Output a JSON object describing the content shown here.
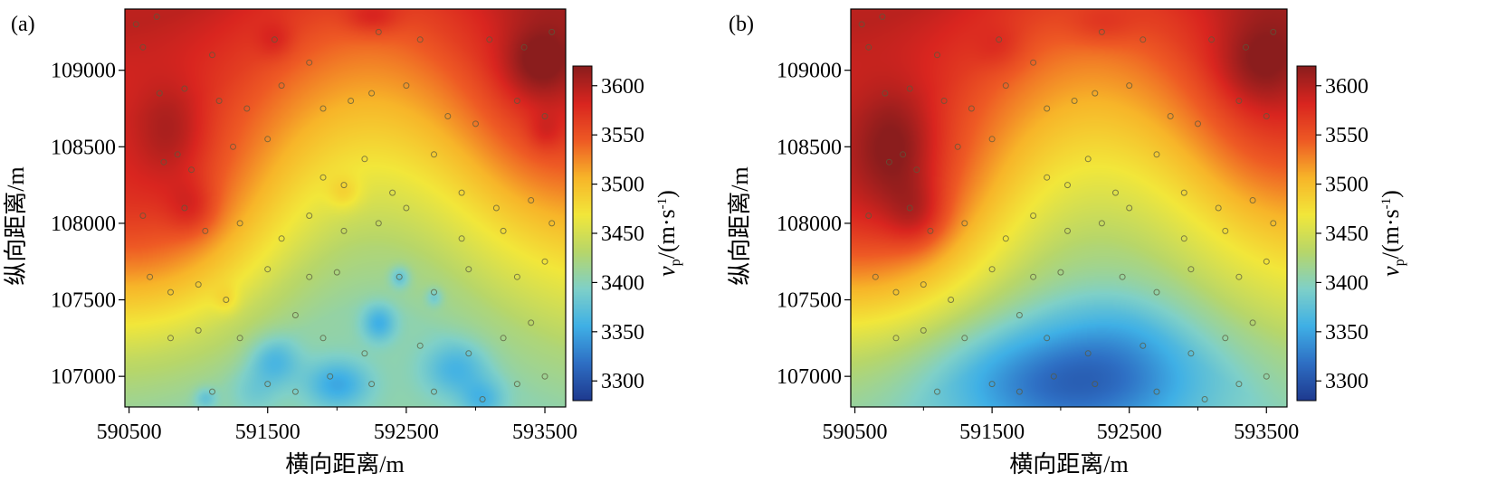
{
  "figure": {
    "colormap": {
      "name": "jet-like",
      "stops": [
        "#1e3a8f",
        "#2e6fc4",
        "#3fb0e6",
        "#7fd0c8",
        "#b7d66a",
        "#f2e73a",
        "#f7b529",
        "#ee5a24",
        "#d9251f",
        "#8b1d1d"
      ]
    }
  },
  "chart_data": [
    {
      "type": "heatmap",
      "panel_label": "(a)",
      "xlabel": "横向距离/m",
      "ylabel": "纵向距离/m",
      "xlim": [
        590470,
        593650
      ],
      "ylim": [
        106800,
        109400
      ],
      "xticks": [
        590500,
        591500,
        592500,
        593500
      ],
      "yticks": [
        107000,
        107500,
        108000,
        108500,
        109000
      ],
      "colorbar": {
        "label": "vp/(m·s-1)",
        "range": [
          3280,
          3620
        ],
        "ticks": [
          3300,
          3350,
          3400,
          3450,
          3500,
          3550,
          3600
        ]
      },
      "field": {
        "base": [
          [
            0.55,
            109400,
            3590
          ],
          [
            0.0,
            108650,
            3550
          ],
          [
            0.3,
            108050,
            3510
          ],
          [
            0.55,
            107600,
            3460
          ],
          [
            1.0,
            107450,
            3420
          ]
        ],
        "west_ridge": {
          "x": 590600,
          "y": 108000,
          "sx": 900,
          "sy": 700,
          "amp": 60
        },
        "bumps": [
          [
            591550,
            107100,
            180,
            160,
            -45
          ],
          [
            592000,
            106950,
            230,
            160,
            -55
          ],
          [
            591400,
            106900,
            170,
            140,
            -20
          ],
          [
            592300,
            107350,
            120,
            120,
            -50
          ],
          [
            592850,
            107050,
            230,
            180,
            -45
          ],
          [
            593050,
            106850,
            160,
            130,
            -40
          ],
          [
            591050,
            106860,
            80,
            70,
            -30
          ],
          [
            592450,
            107650,
            70,
            70,
            -40
          ],
          [
            592700,
            107520,
            60,
            60,
            -30
          ],
          [
            590800,
            108600,
            260,
            320,
            30
          ],
          [
            590950,
            108100,
            180,
            180,
            30
          ],
          [
            591200,
            107500,
            90,
            90,
            20
          ],
          [
            592250,
            109350,
            200,
            110,
            30
          ],
          [
            593450,
            109050,
            250,
            220,
            35
          ],
          [
            593500,
            108600,
            120,
            120,
            20
          ],
          [
            591550,
            109200,
            130,
            120,
            20
          ],
          [
            592050,
            108200,
            120,
            110,
            25
          ]
        ]
      },
      "samples": [
        [
          590550,
          109300
        ],
        [
          590600,
          109150
        ],
        [
          590700,
          109350
        ],
        [
          591100,
          109100
        ],
        [
          591550,
          109200
        ],
        [
          591800,
          109050
        ],
        [
          592300,
          109250
        ],
        [
          592600,
          109200
        ],
        [
          593100,
          109200
        ],
        [
          593350,
          109150
        ],
        [
          593550,
          109250
        ],
        [
          590720,
          108850
        ],
        [
          590900,
          108880
        ],
        [
          591150,
          108800
        ],
        [
          591350,
          108750
        ],
        [
          591600,
          108900
        ],
        [
          591900,
          108750
        ],
        [
          592100,
          108800
        ],
        [
          592250,
          108850
        ],
        [
          592500,
          108900
        ],
        [
          592800,
          108700
        ],
        [
          593000,
          108650
        ],
        [
          593300,
          108800
        ],
        [
          593500,
          108700
        ],
        [
          590750,
          108400
        ],
        [
          590850,
          108450
        ],
        [
          590950,
          108350
        ],
        [
          591250,
          108500
        ],
        [
          591500,
          108550
        ],
        [
          591900,
          108300
        ],
        [
          592050,
          108250
        ],
        [
          592200,
          108420
        ],
        [
          592400,
          108200
        ],
        [
          592700,
          108450
        ],
        [
          592900,
          108200
        ],
        [
          593150,
          108100
        ],
        [
          593400,
          108150
        ],
        [
          590600,
          108050
        ],
        [
          590900,
          108100
        ],
        [
          591050,
          107950
        ],
        [
          591300,
          108000
        ],
        [
          591600,
          107900
        ],
        [
          591800,
          108050
        ],
        [
          592050,
          107950
        ],
        [
          592300,
          108000
        ],
        [
          592500,
          108100
        ],
        [
          592900,
          107900
        ],
        [
          593200,
          107950
        ],
        [
          593550,
          108000
        ],
        [
          590650,
          107650
        ],
        [
          590800,
          107550
        ],
        [
          591000,
          107600
        ],
        [
          591200,
          107500
        ],
        [
          591500,
          107700
        ],
        [
          591800,
          107650
        ],
        [
          592000,
          107680
        ],
        [
          592450,
          107650
        ],
        [
          592700,
          107550
        ],
        [
          592950,
          107700
        ],
        [
          593300,
          107650
        ],
        [
          593500,
          107750
        ],
        [
          590800,
          107250
        ],
        [
          591000,
          107300
        ],
        [
          591300,
          107250
        ],
        [
          591700,
          107400
        ],
        [
          591900,
          107250
        ],
        [
          592200,
          107150
        ],
        [
          592600,
          107200
        ],
        [
          592950,
          107150
        ],
        [
          593200,
          107250
        ],
        [
          593400,
          107350
        ],
        [
          591100,
          106900
        ],
        [
          591500,
          106950
        ],
        [
          591700,
          106900
        ],
        [
          591950,
          107000
        ],
        [
          592250,
          106950
        ],
        [
          592700,
          106900
        ],
        [
          593050,
          106850
        ],
        [
          593300,
          106950
        ],
        [
          593500,
          107000
        ]
      ]
    },
    {
      "type": "heatmap",
      "panel_label": "(b)",
      "xlabel": "横向距离/m",
      "ylabel": "纵向距离/m",
      "xlim": [
        590470,
        593650
      ],
      "ylim": [
        106800,
        109400
      ],
      "xticks": [
        590500,
        591500,
        592500,
        593500
      ],
      "yticks": [
        107000,
        107500,
        108000,
        108500,
        109000
      ],
      "colorbar": {
        "label": "vp/(m·s-1)",
        "range": [
          3280,
          3620
        ],
        "ticks": [
          3300,
          3350,
          3400,
          3450,
          3500,
          3550,
          3600
        ]
      },
      "field": {
        "base": [
          [
            0.55,
            109400,
            3590
          ],
          [
            0.0,
            108650,
            3555
          ],
          [
            0.3,
            108100,
            3515
          ],
          [
            0.55,
            107650,
            3470
          ],
          [
            1.0,
            107450,
            3430
          ]
        ],
        "west_ridge": {
          "x": 590600,
          "y": 108050,
          "sx": 900,
          "sy": 700,
          "amp": 70
        },
        "bumps": [
          [
            592100,
            106950,
            900,
            380,
            -95
          ],
          [
            592400,
            107300,
            500,
            300,
            -20
          ],
          [
            590800,
            108500,
            300,
            380,
            40
          ],
          [
            590950,
            108050,
            220,
            220,
            35
          ],
          [
            593450,
            109050,
            300,
            260,
            30
          ],
          [
            592300,
            109300,
            250,
            130,
            20
          ],
          [
            591550,
            109150,
            180,
            150,
            15
          ]
        ]
      },
      "samples": [
        [
          590550,
          109300
        ],
        [
          590600,
          109150
        ],
        [
          590700,
          109350
        ],
        [
          591100,
          109100
        ],
        [
          591550,
          109200
        ],
        [
          591800,
          109050
        ],
        [
          592300,
          109250
        ],
        [
          592600,
          109200
        ],
        [
          593100,
          109200
        ],
        [
          593350,
          109150
        ],
        [
          593550,
          109250
        ],
        [
          590720,
          108850
        ],
        [
          590900,
          108880
        ],
        [
          591150,
          108800
        ],
        [
          591350,
          108750
        ],
        [
          591600,
          108900
        ],
        [
          591900,
          108750
        ],
        [
          592100,
          108800
        ],
        [
          592250,
          108850
        ],
        [
          592500,
          108900
        ],
        [
          592800,
          108700
        ],
        [
          593000,
          108650
        ],
        [
          593300,
          108800
        ],
        [
          593500,
          108700
        ],
        [
          590750,
          108400
        ],
        [
          590850,
          108450
        ],
        [
          590950,
          108350
        ],
        [
          591250,
          108500
        ],
        [
          591500,
          108550
        ],
        [
          591900,
          108300
        ],
        [
          592050,
          108250
        ],
        [
          592200,
          108420
        ],
        [
          592400,
          108200
        ],
        [
          592700,
          108450
        ],
        [
          592900,
          108200
        ],
        [
          593150,
          108100
        ],
        [
          593400,
          108150
        ],
        [
          590600,
          108050
        ],
        [
          590900,
          108100
        ],
        [
          591050,
          107950
        ],
        [
          591300,
          108000
        ],
        [
          591600,
          107900
        ],
        [
          591800,
          108050
        ],
        [
          592050,
          107950
        ],
        [
          592300,
          108000
        ],
        [
          592500,
          108100
        ],
        [
          592900,
          107900
        ],
        [
          593200,
          107950
        ],
        [
          593550,
          108000
        ],
        [
          590650,
          107650
        ],
        [
          590800,
          107550
        ],
        [
          591000,
          107600
        ],
        [
          591200,
          107500
        ],
        [
          591500,
          107700
        ],
        [
          591800,
          107650
        ],
        [
          592000,
          107680
        ],
        [
          592450,
          107650
        ],
        [
          592700,
          107550
        ],
        [
          592950,
          107700
        ],
        [
          593300,
          107650
        ],
        [
          593500,
          107750
        ],
        [
          590800,
          107250
        ],
        [
          591000,
          107300
        ],
        [
          591300,
          107250
        ],
        [
          591700,
          107400
        ],
        [
          591900,
          107250
        ],
        [
          592200,
          107150
        ],
        [
          592600,
          107200
        ],
        [
          592950,
          107150
        ],
        [
          593200,
          107250
        ],
        [
          593400,
          107350
        ],
        [
          591100,
          106900
        ],
        [
          591500,
          106950
        ],
        [
          591700,
          106900
        ],
        [
          591950,
          107000
        ],
        [
          592250,
          106950
        ],
        [
          592700,
          106900
        ],
        [
          593050,
          106850
        ],
        [
          593300,
          106950
        ],
        [
          593500,
          107000
        ]
      ]
    }
  ]
}
